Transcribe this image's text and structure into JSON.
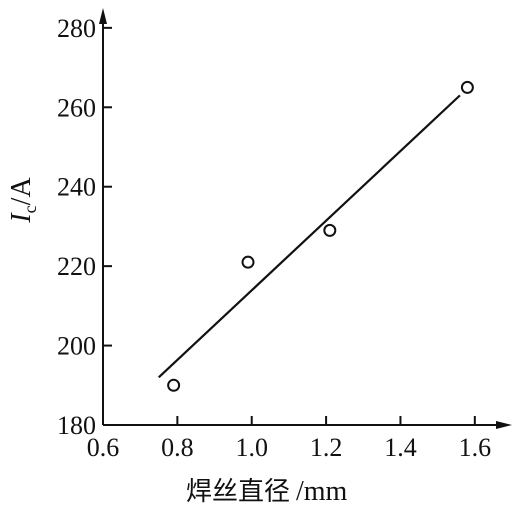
{
  "chart_data": {
    "type": "scatter",
    "xlabel_main": "焊丝直径",
    "xlabel_unit": "/mm",
    "ylabel_symbol": "I",
    "ylabel_subscript": "c",
    "ylabel_unit": "/A",
    "xlim": [
      0.6,
      1.7
    ],
    "ylim": [
      180,
      285
    ],
    "x_ticks": [
      "0.6",
      "0.8",
      "1.0",
      "1.2",
      "1.4",
      "1.6"
    ],
    "y_ticks": [
      "180",
      "200",
      "220",
      "240",
      "260",
      "280"
    ],
    "grid": false,
    "points": [
      {
        "x": 0.79,
        "y": 190
      },
      {
        "x": 0.99,
        "y": 221
      },
      {
        "x": 1.21,
        "y": 229
      },
      {
        "x": 1.58,
        "y": 265
      }
    ],
    "fit_line": {
      "x": [
        0.75,
        1.56
      ],
      "y": [
        192,
        263
      ]
    }
  }
}
